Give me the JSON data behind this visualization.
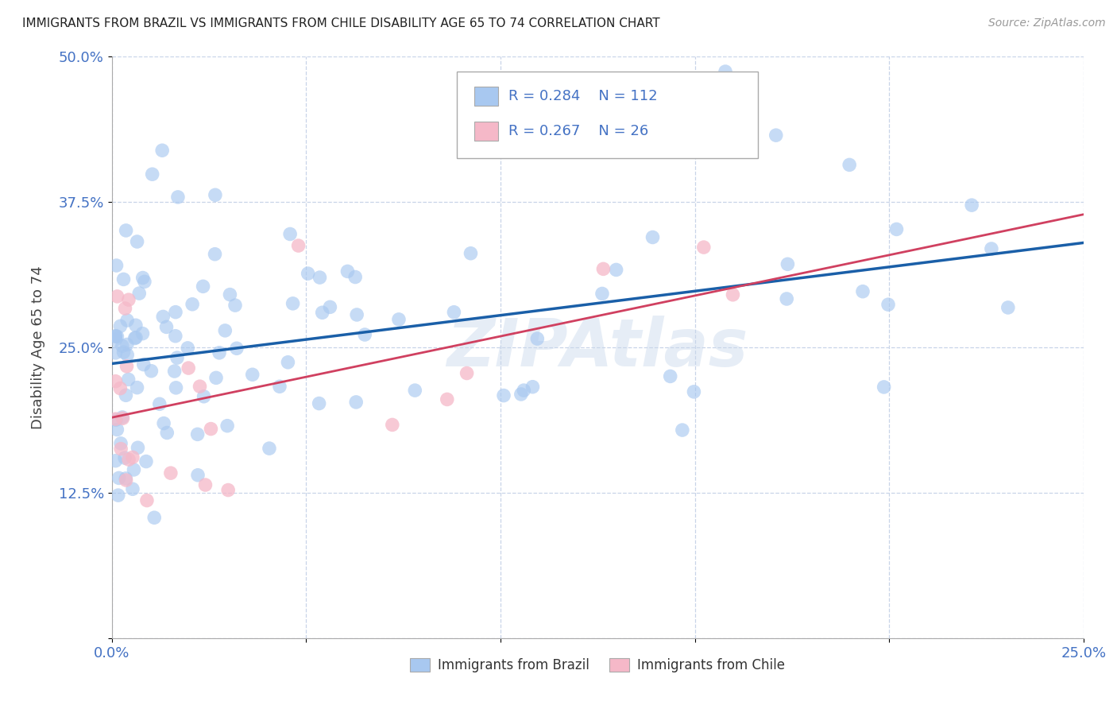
{
  "title": "IMMIGRANTS FROM BRAZIL VS IMMIGRANTS FROM CHILE DISABILITY AGE 65 TO 74 CORRELATION CHART",
  "source": "Source: ZipAtlas.com",
  "ylabel": "Disability Age 65 to 74",
  "xlim": [
    0.0,
    0.25
  ],
  "ylim": [
    0.0,
    0.5
  ],
  "xticks": [
    0.0,
    0.05,
    0.1,
    0.15,
    0.2,
    0.25
  ],
  "yticks": [
    0.0,
    0.125,
    0.25,
    0.375,
    0.5
  ],
  "ytick_labels": [
    "",
    "12.5%",
    "25.0%",
    "37.5%",
    "50.0%"
  ],
  "xtick_labels": [
    "0.0%",
    "",
    "",
    "",
    "",
    "25.0%"
  ],
  "legend_r_brazil": "R = 0.284",
  "legend_n_brazil": "N = 112",
  "legend_r_chile": "R = 0.267",
  "legend_n_chile": "N = 26",
  "brazil_color": "#a8c8f0",
  "chile_color": "#f5b8c8",
  "brazil_line_color": "#1a5fa8",
  "chile_line_color": "#d04060",
  "watermark": "ZIPAtlas",
  "watermark_color": "#c8d8ec",
  "brazil_R": 0.284,
  "chile_R": 0.267
}
